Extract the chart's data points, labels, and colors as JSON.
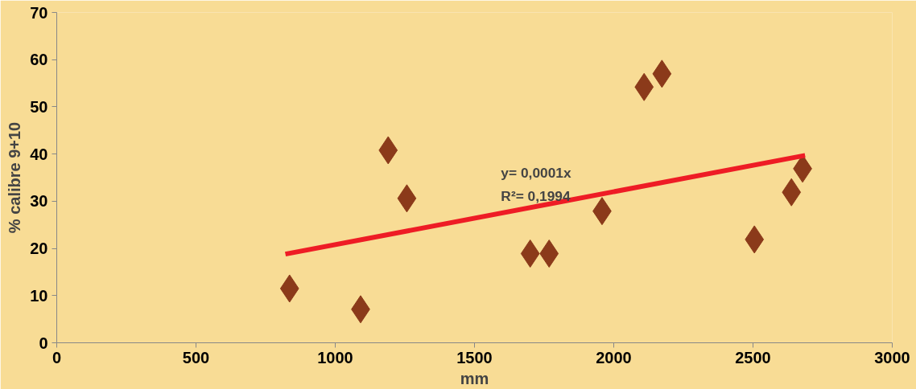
{
  "chart_data": {
    "type": "scatter",
    "xlabel": "mm",
    "ylabel": "% calibre 9+10",
    "xlim": [
      0,
      3000
    ],
    "ylim": [
      0,
      70
    ],
    "xticks": [
      0,
      500,
      1000,
      1500,
      2000,
      2500,
      3000
    ],
    "yticks": [
      0,
      10,
      20,
      30,
      40,
      50,
      60,
      70
    ],
    "grid": false,
    "annotations": [
      "y= 0,0001x",
      "R²= 0,1994"
    ],
    "series": [
      {
        "marker": "diamond",
        "color": "#8b3a1a",
        "x": [
          836,
          1091,
          1190,
          1257,
          1700,
          1768,
          1958,
          2109,
          2173,
          2505,
          2638,
          2678
        ],
        "values": [
          11.5,
          7.1,
          40.8,
          30.6,
          18.9,
          18.9,
          27.9,
          54.2,
          57.0,
          21.9,
          31.9,
          36.9
        ]
      },
      {
        "type": "line",
        "marker": "none",
        "color": "#ee1c25",
        "x": [
          821,
          2687
        ],
        "values": [
          18.8,
          39.7
        ]
      }
    ]
  }
}
